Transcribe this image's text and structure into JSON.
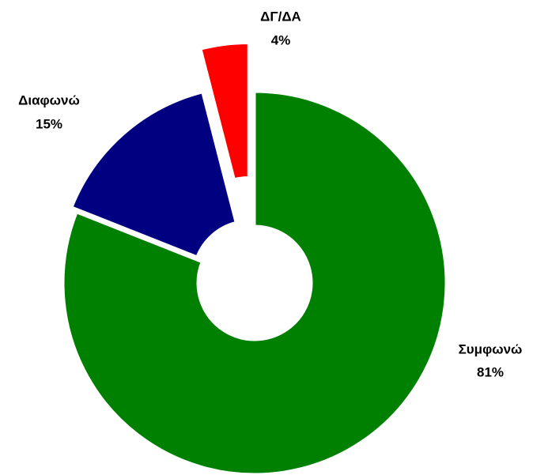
{
  "chart_data": {
    "type": "donut",
    "categories": [
      "Συμφωνώ",
      "Διαφωνώ",
      "ΔΓ/ΔΑ"
    ],
    "values": [
      81,
      15,
      4
    ],
    "value_labels": [
      "81%",
      "15%",
      "4%"
    ],
    "colors": [
      "#008000",
      "#000080",
      "#ff0000"
    ]
  }
}
